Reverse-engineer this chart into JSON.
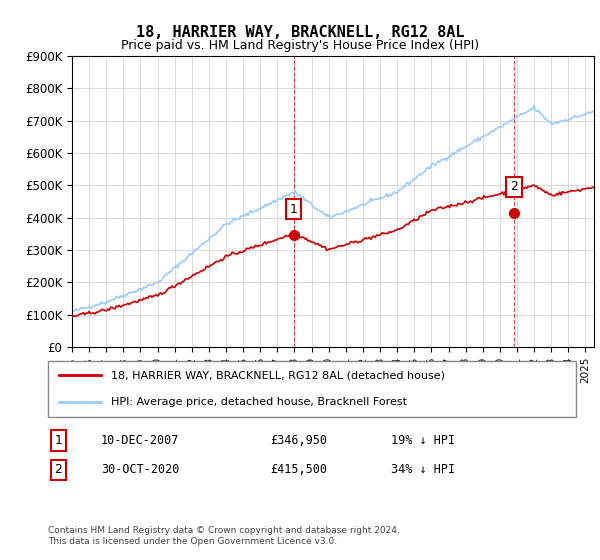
{
  "title": "18, HARRIER WAY, BRACKNELL, RG12 8AL",
  "subtitle": "Price paid vs. HM Land Registry's House Price Index (HPI)",
  "ylabel_ticks": [
    "£0",
    "£100K",
    "£200K",
    "£300K",
    "£400K",
    "£500K",
    "£600K",
    "£700K",
    "£800K",
    "£900K"
  ],
  "ylim": [
    0,
    900000
  ],
  "xlim_start": 1995,
  "xlim_end": 2025.5,
  "line1_color": "#cc0000",
  "line2_color": "#99ccff",
  "marker1_color": "#cc0000",
  "sale1_year": 2007.95,
  "sale1_price": 346950,
  "sale1_label": "1",
  "sale2_year": 2020.83,
  "sale2_price": 415500,
  "sale2_label": "2",
  "legend_line1": "18, HARRIER WAY, BRACKNELL, RG12 8AL (detached house)",
  "legend_line2": "HPI: Average price, detached house, Bracknell Forest",
  "annotation1": "1   10-DEC-2007       £346,950       19% ↓ HPI",
  "annotation2": "2   30-OCT-2020       £415,500       34% ↓ HPI",
  "footer": "Contains HM Land Registry data © Crown copyright and database right 2024.\nThis data is licensed under the Open Government Licence v3.0.",
  "background_color": "#ffffff",
  "grid_color": "#cccccc"
}
